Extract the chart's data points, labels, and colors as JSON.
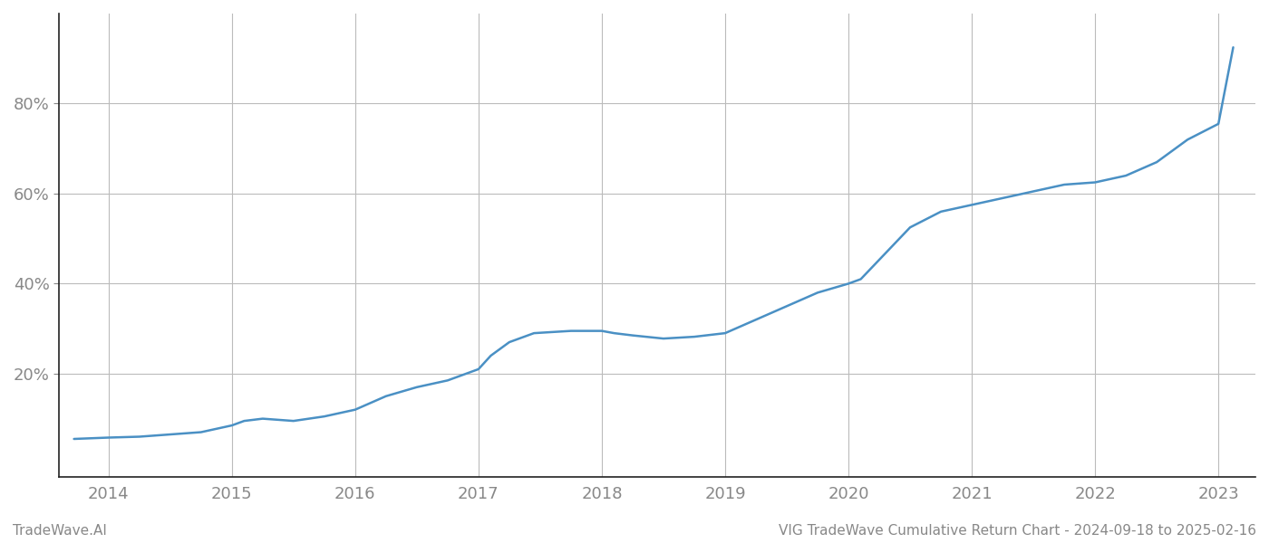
{
  "title": "VIG TradeWave Cumulative Return Chart - 2024-09-18 to 2025-02-16",
  "watermark": "TradeWave.AI",
  "line_color": "#4a90c4",
  "background_color": "#ffffff",
  "grid_color": "#bbbbbb",
  "x_years": [
    2013.72,
    2014.0,
    2014.25,
    2014.5,
    2014.75,
    2015.0,
    2015.1,
    2015.25,
    2015.5,
    2015.75,
    2016.0,
    2016.25,
    2016.5,
    2016.75,
    2017.0,
    2017.1,
    2017.25,
    2017.45,
    2017.75,
    2018.0,
    2018.1,
    2018.25,
    2018.5,
    2018.75,
    2019.0,
    2019.25,
    2019.5,
    2019.75,
    2020.0,
    2020.1,
    2020.5,
    2020.75,
    2021.0,
    2021.25,
    2021.5,
    2021.75,
    2022.0,
    2022.25,
    2022.5,
    2022.75,
    2023.0,
    2023.12
  ],
  "y_values": [
    5.5,
    5.8,
    6.0,
    6.5,
    7.0,
    8.5,
    9.5,
    10.0,
    9.5,
    10.5,
    12.0,
    15.0,
    17.0,
    18.5,
    21.0,
    24.0,
    27.0,
    29.0,
    29.5,
    29.5,
    29.0,
    28.5,
    27.8,
    28.2,
    29.0,
    32.0,
    35.0,
    38.0,
    40.0,
    41.0,
    52.5,
    56.0,
    57.5,
    59.0,
    60.5,
    62.0,
    62.5,
    64.0,
    67.0,
    72.0,
    75.5,
    92.5
  ],
  "xlim": [
    2013.6,
    2023.3
  ],
  "ylim": [
    -3,
    100
  ],
  "yticks": [
    20,
    40,
    60,
    80
  ],
  "ytick_labels": [
    "20%",
    "40%",
    "60%",
    "80%"
  ],
  "xticks": [
    2014,
    2015,
    2016,
    2017,
    2018,
    2019,
    2020,
    2021,
    2022,
    2023
  ],
  "line_width": 1.8,
  "tick_fontsize": 13,
  "footer_fontsize": 11,
  "axis_color": "#888888",
  "spine_color": "#222222"
}
